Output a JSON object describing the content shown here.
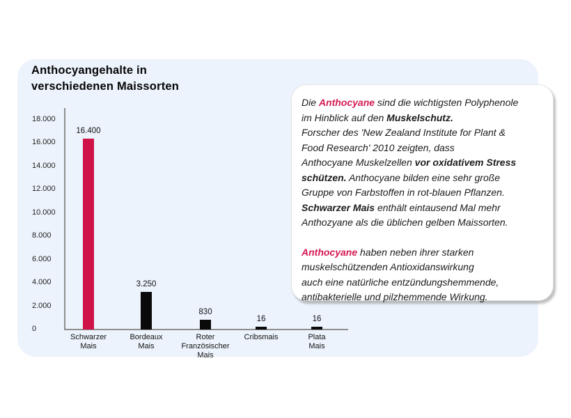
{
  "page": {
    "background": "#ffffff"
  },
  "panel": {
    "background": "#ECF3FC",
    "title": "Anthocyangehalte in\nverschiedenen Maissorten"
  },
  "colors": {
    "accent_pink_bar": "#CF1349",
    "accent_pink_text": "#D41A52",
    "bar_black": "#0A0A0A",
    "axis_gray": "#8F8F8F",
    "text_dark": "#1B1B1B"
  },
  "chart_data": {
    "type": "bar",
    "title": "Anthocyangehalte in verschiedenen Maissorten",
    "categories": [
      "Schwarzer\nMais",
      "Bordeaux\nMais",
      "Roter\nFranzösischer\nMais",
      "Cribsmais",
      "Plata\nMais"
    ],
    "values": [
      16400,
      3250,
      830,
      16,
      16
    ],
    "value_labels": [
      "16.400",
      "3.250",
      "830",
      "16",
      "16"
    ],
    "bar_colors": [
      "#CF1349",
      "#0A0A0A",
      "#0A0A0A",
      "#0A0A0A",
      "#0A0A0A"
    ],
    "ylim": [
      0,
      18000
    ],
    "ytick_labels": [
      "18.000",
      "16.000",
      "14.000",
      "12.000",
      "10.000",
      "8.000",
      "6.000",
      "4.000",
      "2.000",
      "0"
    ],
    "ytick_values": [
      18000,
      16000,
      14000,
      12000,
      10000,
      8000,
      6000,
      4000,
      2000,
      0
    ],
    "xlabel": "",
    "ylabel": "",
    "grid": false,
    "legend": null
  },
  "infobox": {
    "paragraphs": [
      {
        "segments": [
          {
            "text": "Die ",
            "style": "normal"
          },
          {
            "text": "Anthocyane",
            "style": "bold-pink"
          },
          {
            "text": " sind die wichtigsten Polyphenole\nim Hinblick auf den ",
            "style": "normal"
          },
          {
            "text": "Muskelschutz.",
            "style": "bold"
          },
          {
            "text": "\nForscher des 'New Zealand Institute for Plant &\nFood Research' 2010 zeigten, dass\nAnthocyane Muskelzellen ",
            "style": "normal"
          },
          {
            "text": "vor oxidativem Stress\nschützen.",
            "style": "bold"
          },
          {
            "text": "  Anthocyane bilden eine sehr große\nGruppe von Farbstoffen in rot-blauen Pflanzen.\n",
            "style": "normal"
          },
          {
            "text": "Schwarzer Mais",
            "style": "bold"
          },
          {
            "text": "  enthält eintausend Mal mehr\nAnthozyane als die üblichen gelben Maissorten.",
            "style": "normal"
          }
        ]
      },
      {
        "segments": [
          {
            "text": "Anthocyane",
            "style": "bold-pink"
          },
          {
            "text": " haben neben ihrer starken\nmuskelschützenden Antioxidanswirkung\nauch eine natürliche entzündungshemmende,\nantibakterielle und pilzhemmende Wirkung.",
            "style": "normal"
          }
        ]
      }
    ]
  }
}
